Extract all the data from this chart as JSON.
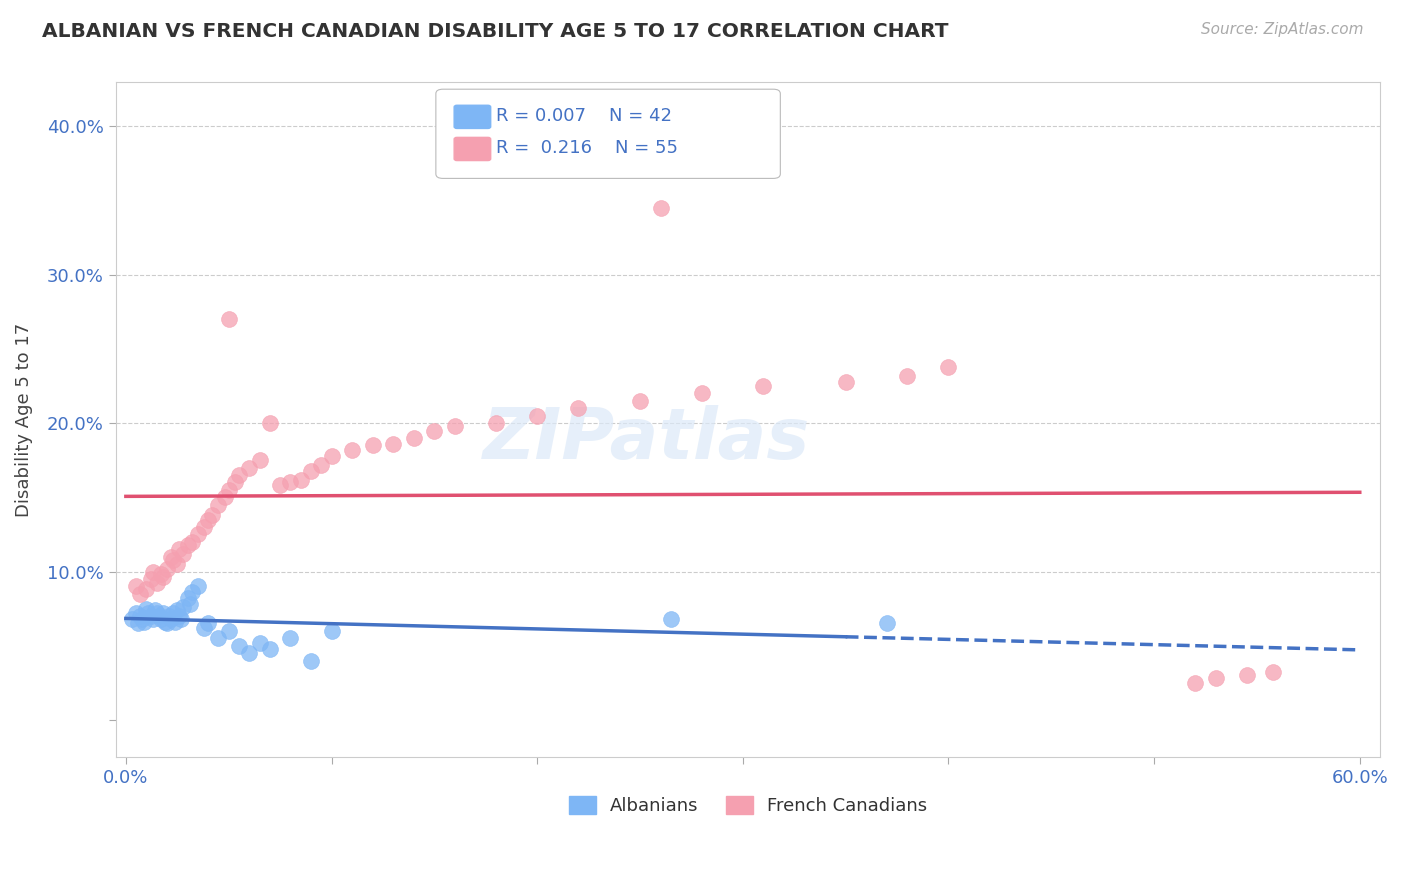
{
  "title": "ALBANIAN VS FRENCH CANADIAN DISABILITY AGE 5 TO 17 CORRELATION CHART",
  "source": "Source: ZipAtlas.com",
  "ylabel": "Disability Age 5 to 17",
  "xlim": [
    -0.005,
    0.61
  ],
  "ylim": [
    -0.025,
    0.43
  ],
  "xtick_positions": [
    0.0,
    0.1,
    0.2,
    0.3,
    0.4,
    0.5,
    0.6
  ],
  "xticklabels": [
    "0.0%",
    "",
    "",
    "",
    "",
    "",
    "60.0%"
  ],
  "ytick_positions": [
    0.0,
    0.1,
    0.2,
    0.3,
    0.4
  ],
  "yticklabels": [
    "",
    "10.0%",
    "20.0%",
    "30.0%",
    "40.0%"
  ],
  "grid_color": "#cccccc",
  "background_color": "#ffffff",
  "albanians_color": "#7eb6f5",
  "french_canadians_color": "#f5a0b0",
  "albanian_line_color": "#4472c4",
  "french_line_color": "#e05070",
  "legend_R_albanian": "0.007",
  "legend_N_albanian": "42",
  "legend_R_french": "0.216",
  "legend_N_french": "55",
  "albanian_x": [
    0.003,
    0.005,
    0.006,
    0.007,
    0.008,
    0.009,
    0.01,
    0.011,
    0.012,
    0.013,
    0.014,
    0.015,
    0.016,
    0.017,
    0.018,
    0.019,
    0.02,
    0.021,
    0.022,
    0.023,
    0.024,
    0.025,
    0.026,
    0.027,
    0.028,
    0.03,
    0.031,
    0.032,
    0.035,
    0.038,
    0.04,
    0.045,
    0.05,
    0.055,
    0.06,
    0.065,
    0.07,
    0.08,
    0.09,
    0.1,
    0.265,
    0.37
  ],
  "albanian_y": [
    0.068,
    0.072,
    0.065,
    0.07,
    0.068,
    0.066,
    0.075,
    0.072,
    0.07,
    0.068,
    0.074,
    0.072,
    0.07,
    0.068,
    0.072,
    0.066,
    0.065,
    0.07,
    0.068,
    0.072,
    0.066,
    0.074,
    0.07,
    0.068,
    0.076,
    0.082,
    0.078,
    0.086,
    0.09,
    0.062,
    0.065,
    0.055,
    0.06,
    0.05,
    0.045,
    0.052,
    0.048,
    0.055,
    0.04,
    0.06,
    0.068,
    0.065
  ],
  "french_x": [
    0.005,
    0.007,
    0.01,
    0.012,
    0.013,
    0.015,
    0.017,
    0.018,
    0.02,
    0.022,
    0.023,
    0.025,
    0.026,
    0.028,
    0.03,
    0.032,
    0.035,
    0.038,
    0.04,
    0.042,
    0.045,
    0.048,
    0.05,
    0.053,
    0.055,
    0.06,
    0.065,
    0.07,
    0.075,
    0.08,
    0.085,
    0.09,
    0.095,
    0.1,
    0.11,
    0.12,
    0.13,
    0.14,
    0.15,
    0.16,
    0.18,
    0.2,
    0.22,
    0.25,
    0.26,
    0.28,
    0.31,
    0.35,
    0.38,
    0.4,
    0.05,
    0.52,
    0.53,
    0.545,
    0.558
  ],
  "french_y": [
    0.09,
    0.085,
    0.088,
    0.095,
    0.1,
    0.092,
    0.098,
    0.096,
    0.102,
    0.11,
    0.108,
    0.105,
    0.115,
    0.112,
    0.118,
    0.12,
    0.125,
    0.13,
    0.135,
    0.138,
    0.145,
    0.15,
    0.155,
    0.16,
    0.165,
    0.17,
    0.175,
    0.2,
    0.158,
    0.16,
    0.162,
    0.168,
    0.172,
    0.178,
    0.182,
    0.185,
    0.186,
    0.19,
    0.195,
    0.198,
    0.2,
    0.205,
    0.21,
    0.215,
    0.345,
    0.22,
    0.225,
    0.228,
    0.232,
    0.238,
    0.27,
    0.025,
    0.028,
    0.03,
    0.032
  ],
  "alb_line_x": [
    0.0,
    0.6
  ],
  "alb_line_solid_end": 0.35,
  "watermark": "ZIPatlas"
}
